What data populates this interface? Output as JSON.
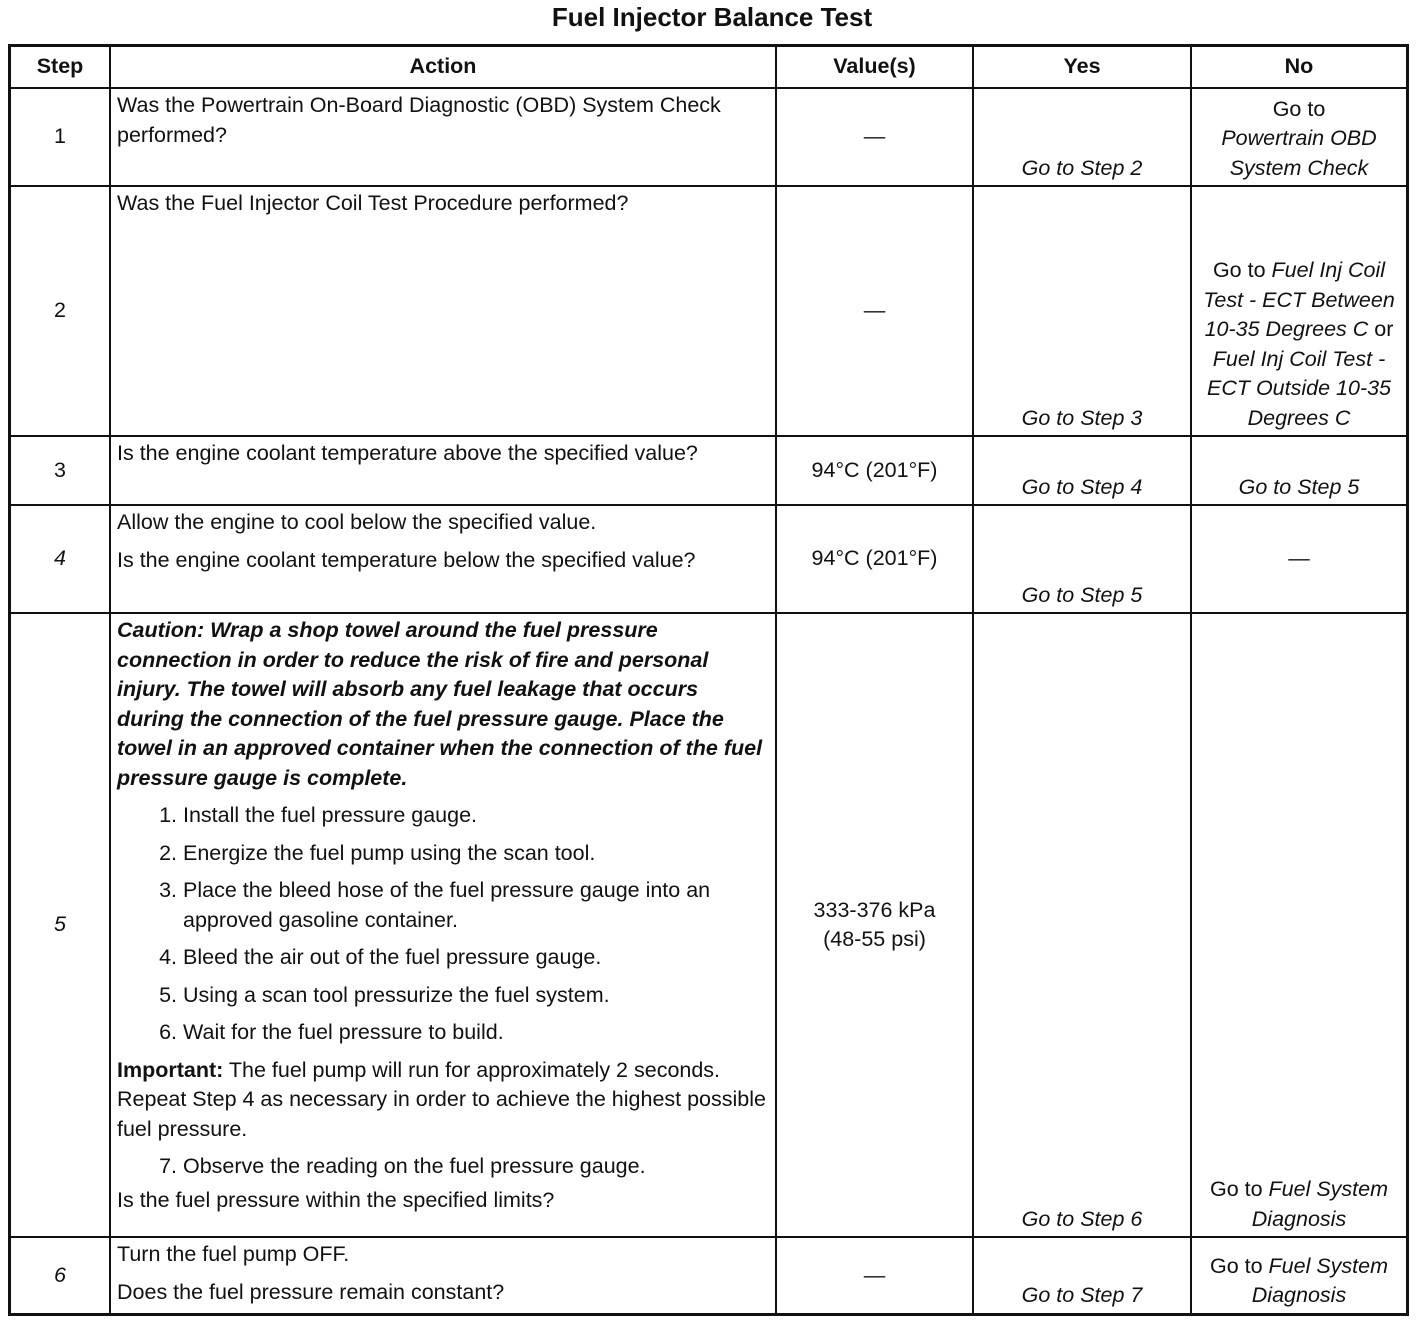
{
  "title": "Fuel Injector Balance Test",
  "headers": {
    "step": "Step",
    "action": "Action",
    "value": "Value(s)",
    "yes": "Yes",
    "no": "No"
  },
  "rows": [
    {
      "step": "1",
      "action": "Was the Powertrain On-Board Diagnostic (OBD) System Check performed?",
      "value": "—",
      "yes": "Go to Step 2",
      "no_prefix": "Go to",
      "no_link": "Powertrain OBD System Check"
    },
    {
      "step": "2",
      "action": "Was the Fuel Injector Coil Test Procedure performed?",
      "value": "—",
      "yes": "Go to Step 3",
      "no_prefix": "Go to",
      "no_link1": "Fuel Inj Coil Test - ECT Between 10-35 Degrees C",
      "no_or": "or",
      "no_link2": "Fuel Inj Coil Test - ECT Outside 10-35 Degrees C"
    },
    {
      "step": "3",
      "action": "Is the engine coolant temperature above the specified value?",
      "value": "94°C (201°F)",
      "yes": "Go to Step 4",
      "no": "Go to Step 5"
    },
    {
      "step": "4",
      "action1": "Allow the engine to cool below the specified value.",
      "action2": "Is the engine coolant temperature below the specified value?",
      "value": "94°C (201°F)",
      "yes": "Go to Step 5",
      "no": "—"
    },
    {
      "step": "5",
      "caution": "Caution: Wrap a shop towel around the fuel pressure connection in order to reduce the risk of fire and personal injury. The towel will absorb any fuel leakage that occurs during the connection of the fuel pressure gauge. Place the towel in an approved container when the connection of the fuel pressure gauge is complete.",
      "steps": [
        "Install the fuel pressure gauge.",
        "Energize the fuel pump using the scan tool.",
        "Place the bleed hose of the fuel pressure gauge into an approved gasoline container.",
        "Bleed the air out of the fuel pressure gauge.",
        "Using a scan tool pressurize the fuel system.",
        "Wait for the fuel pressure to build."
      ],
      "important_label": "Important:",
      "important": " The fuel pump will run for approximately 2 seconds. Repeat Step 4 as necessary in order to achieve the highest possible fuel pressure.",
      "step7": "Observe the reading on the fuel pressure gauge.",
      "question": "Is the fuel pressure within the specified limits?",
      "value1": "333-376 kPa",
      "value2": "(48-55 psi)",
      "yes": "Go to Step 6",
      "no_prefix": "Go to",
      "no_link": "Fuel System Diagnosis"
    },
    {
      "step": "6",
      "action1": "Turn the fuel pump OFF.",
      "action2": "Does the fuel pressure remain constant?",
      "value": "—",
      "yes": "Go to Step 7",
      "no_prefix": "Go to",
      "no_link": "Fuel System Diagnosis"
    }
  ]
}
